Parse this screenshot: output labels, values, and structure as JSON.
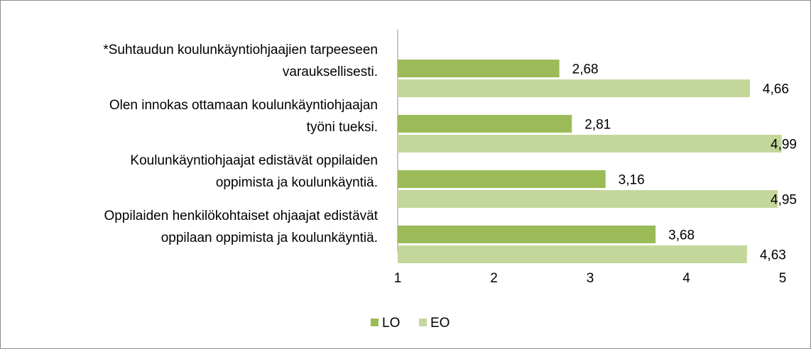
{
  "chart_data": {
    "type": "bar",
    "orientation": "horizontal",
    "categories": [
      [
        "*Suhtaudun koulunkäyntiohjaajien tarpeeseen",
        "varauksellisesti."
      ],
      [
        "Olen innokas ottamaan koulunkäyntiohjaajan",
        "työni tueksi."
      ],
      [
        "Koulunkäyntiohjaajat edistävät oppilaiden",
        "oppimista ja koulunkäyntiä."
      ],
      [
        "Oppilaiden henkilökohtaiset ohjaajat edistävät",
        "oppilaan oppimista ja koulunkäyntiä."
      ]
    ],
    "series": [
      {
        "name": "LO",
        "color": "#9bbb59",
        "values": [
          2.68,
          2.81,
          3.16,
          3.68
        ],
        "value_labels": [
          "2,68",
          "2,81",
          "3,16",
          "3,68"
        ]
      },
      {
        "name": "EO",
        "color": "#c4d79b",
        "values": [
          4.66,
          4.99,
          4.95,
          4.63
        ],
        "value_labels": [
          "4,66",
          "4,99",
          "4,95",
          "4,63"
        ]
      }
    ],
    "xlim": [
      1,
      5
    ],
    "xticks": [
      1,
      2,
      3,
      4,
      5
    ],
    "grid": false,
    "legend": "bottom"
  }
}
